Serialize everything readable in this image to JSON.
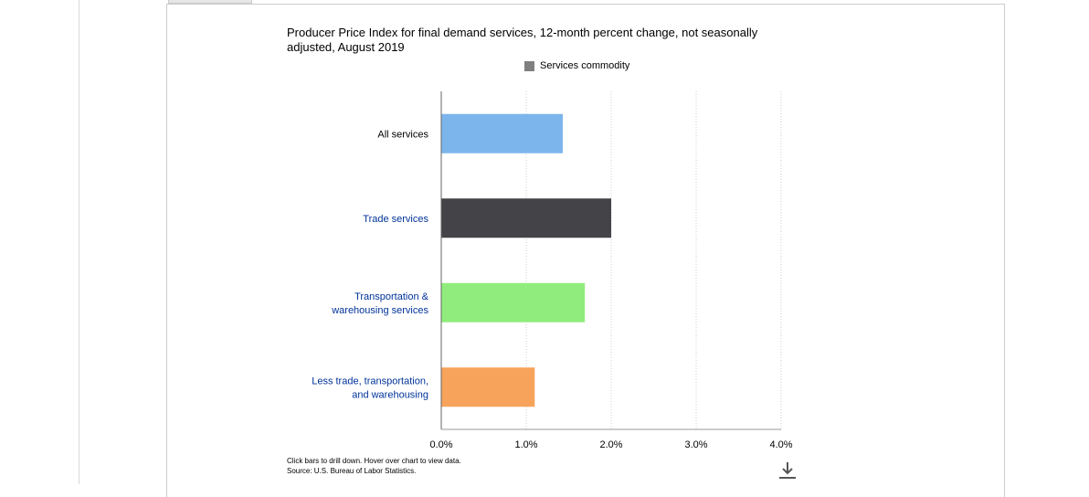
{
  "chart_data": {
    "type": "bar",
    "orientation": "horizontal",
    "title": "Producer Price Index for final demand services, 12-month percent change, not seasonally adjusted, August 2019",
    "legend": [
      {
        "label": "Services commodity",
        "color": "#7f7f7f"
      }
    ],
    "legend_position": "top",
    "categories": [
      {
        "label": [
          "All services"
        ],
        "link": false
      },
      {
        "label": [
          "Trade services"
        ],
        "link": true
      },
      {
        "label": [
          "Transportation &",
          "warehousing services"
        ],
        "link": true
      },
      {
        "label": [
          "Less trade, transportation,",
          "and warehousing"
        ],
        "link": true
      }
    ],
    "values": [
      1.43,
      2.0,
      1.69,
      1.1
    ],
    "colors": [
      "#7cb5ec",
      "#434348",
      "#90ed7d",
      "#f7a35c"
    ],
    "xlim": [
      0,
      4
    ],
    "x_ticks": [
      0,
      1,
      2,
      3,
      4
    ],
    "x_tick_labels": [
      "0.0%",
      "1.0%",
      "2.0%",
      "3.0%",
      "4.0%"
    ],
    "grid": "vertical-dotted",
    "xlabel": "",
    "ylabel": ""
  },
  "footer": {
    "note_line1": "Click bars to drill down. Hover over chart to view data.",
    "note_line2": "Source: U.S. Bureau of Labor Statistics."
  },
  "icons": {
    "download": "download-icon"
  },
  "colors": {
    "link_text": "#003399",
    "axis": "#666666",
    "grid": "#cccccc"
  }
}
